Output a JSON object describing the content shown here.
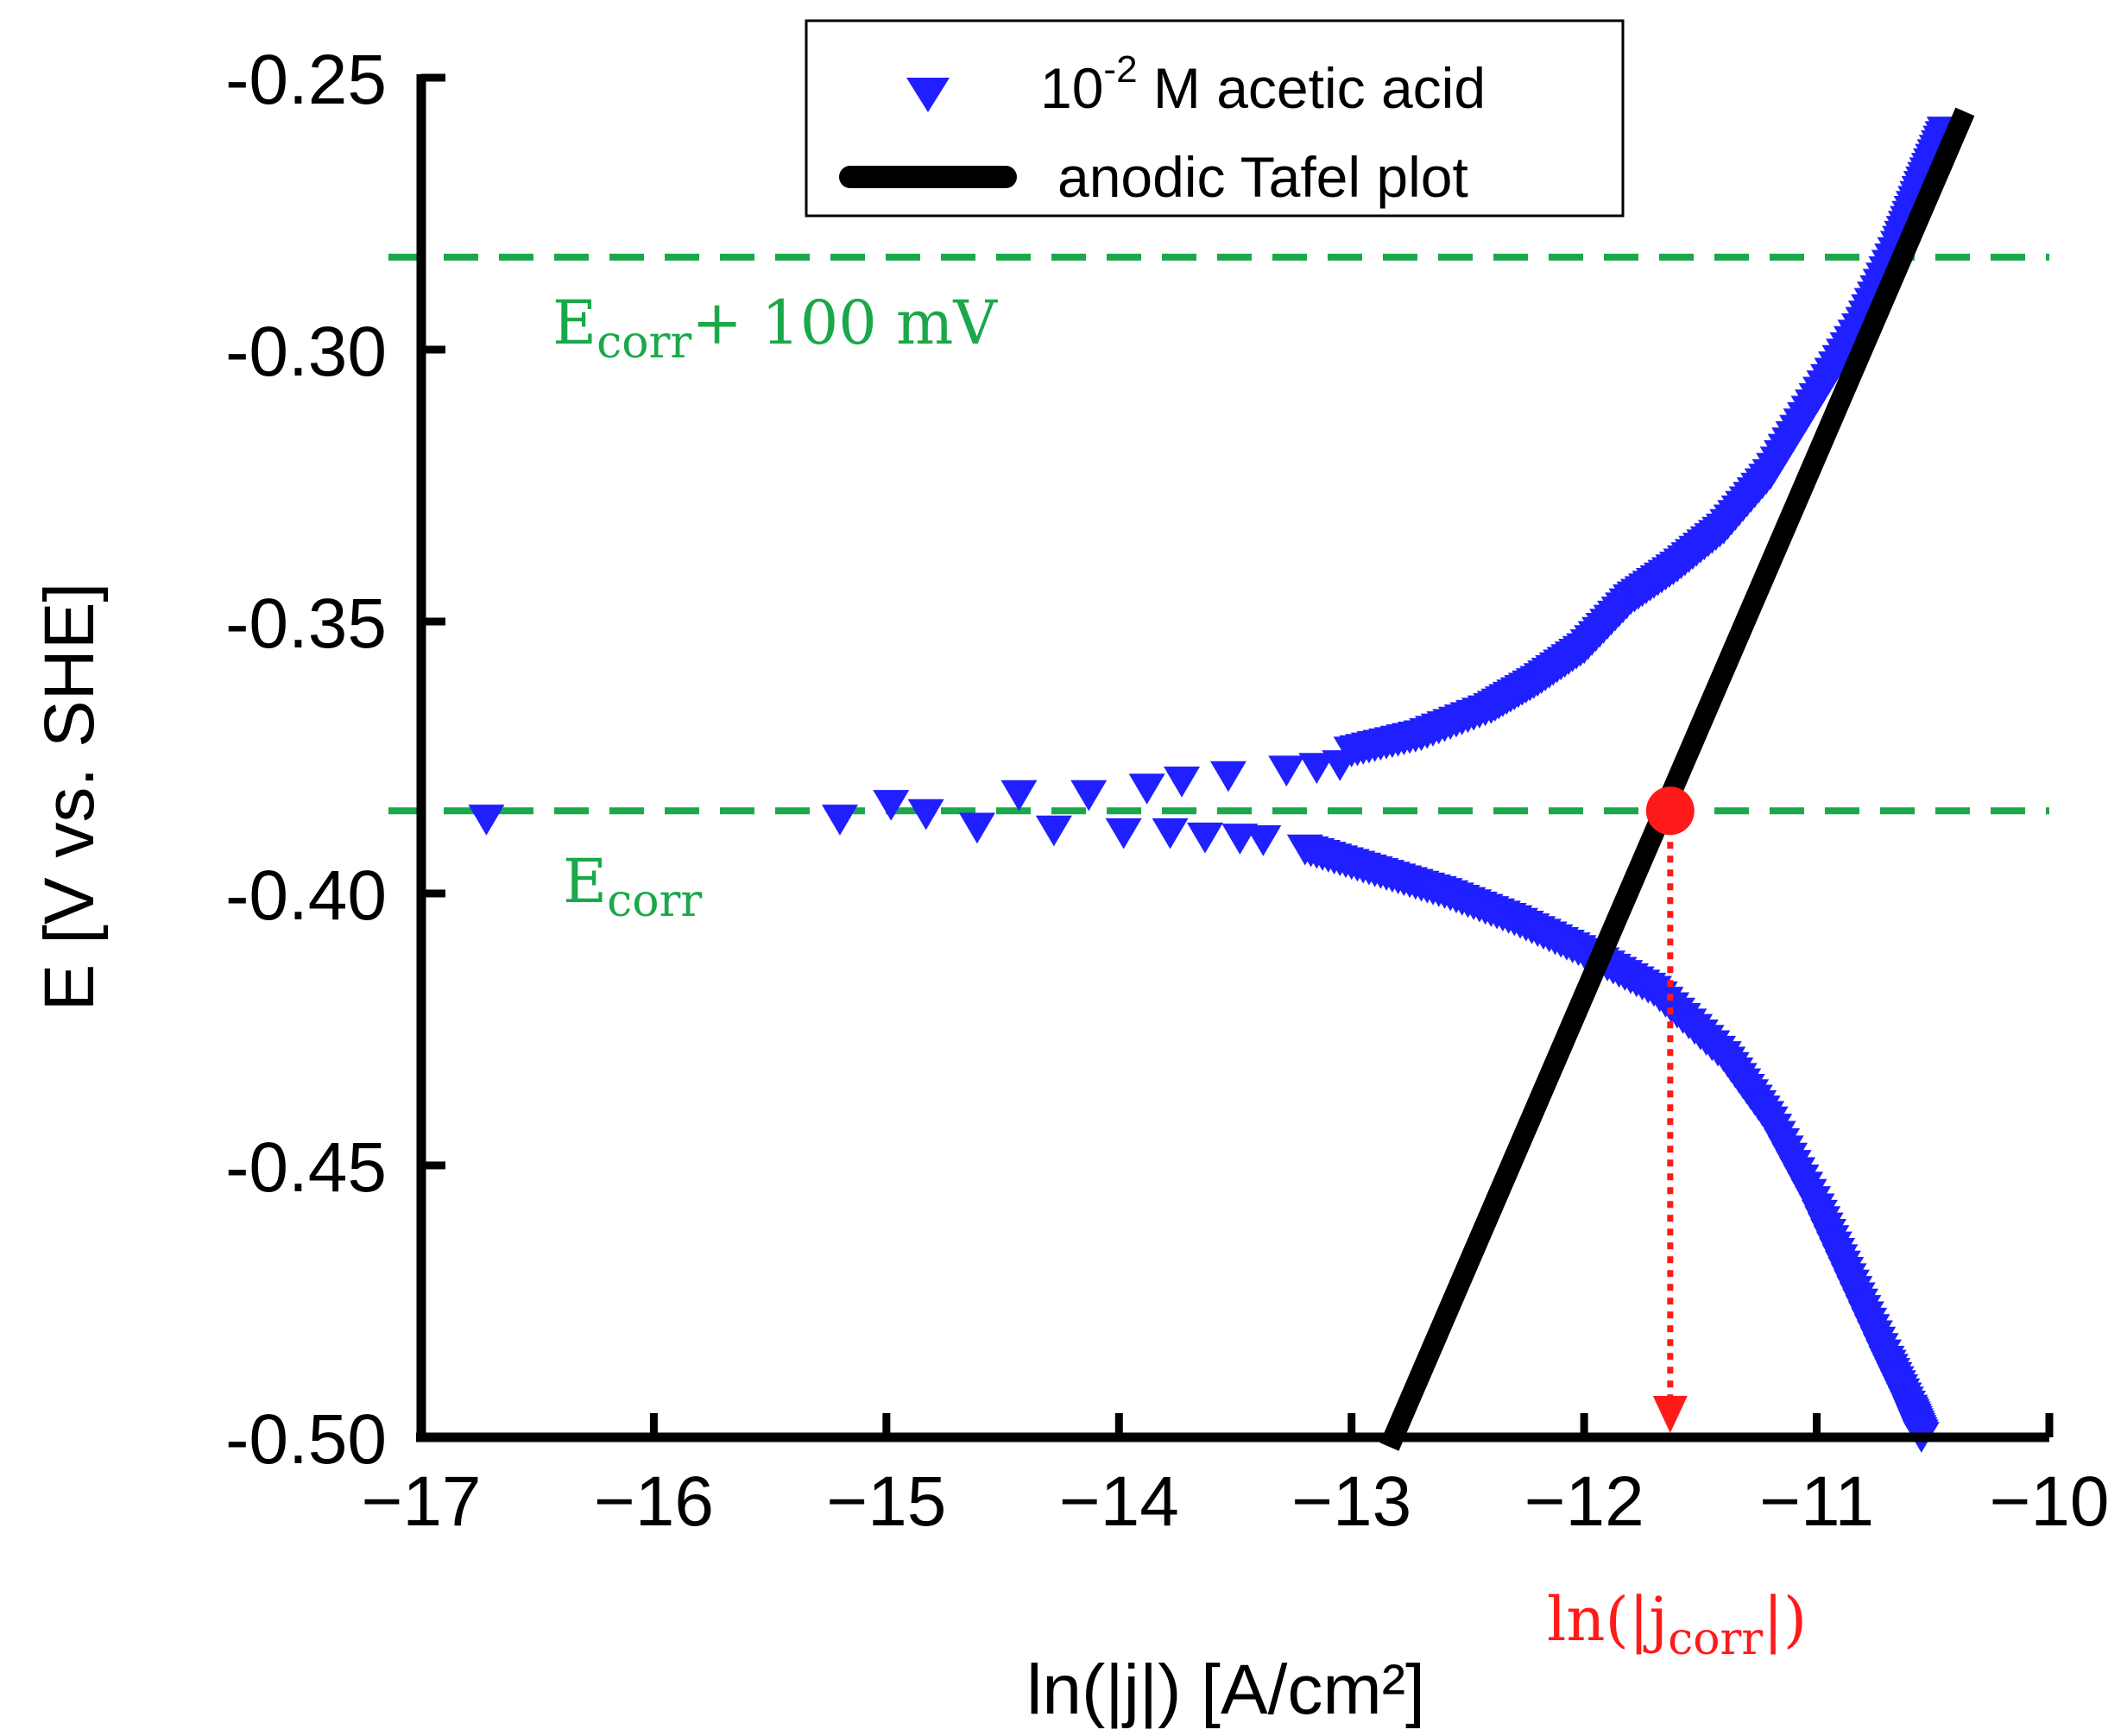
{
  "chart_data": {
    "type": "scatter",
    "title": "",
    "xlabel": "ln(|j|) [A/cm²]",
    "ylabel": "E [V vs. SHE]",
    "xlim": [
      -17,
      -10
    ],
    "ylim": [
      -0.5,
      -0.25
    ],
    "x_ticks": [
      "-17",
      "-16",
      "-15",
      "-14",
      "-13",
      "-12",
      "-11",
      "-10"
    ],
    "y_ticks": [
      "-0.25",
      "-0.30",
      "-0.35",
      "-0.40",
      "-0.45",
      "-0.50"
    ],
    "grid": false,
    "legend_position": "top-right",
    "colors": {
      "series": "#1f1fff",
      "tafel": "#000000",
      "guide": "#1aa84a",
      "marker": "#ff1a1a"
    },
    "series": [
      {
        "name": "acetic_acid",
        "legend_base": "10",
        "legend_exponent": "-2",
        "legend_suffix": " M acetic acid",
        "marker": "triangle-down",
        "points": [
          {
            "x": -16.72,
            "y": -0.3865
          },
          {
            "x": -15.2,
            "y": -0.3865
          },
          {
            "x": -14.98,
            "y": -0.3838
          },
          {
            "x": -14.83,
            "y": -0.3855
          },
          {
            "x": -14.61,
            "y": -0.388
          },
          {
            "x": -14.43,
            "y": -0.382
          },
          {
            "x": -14.28,
            "y": -0.3885
          },
          {
            "x": -14.13,
            "y": -0.382
          },
          {
            "x": -13.98,
            "y": -0.389
          },
          {
            "x": -13.88,
            "y": -0.3808
          },
          {
            "x": -13.73,
            "y": -0.3795
          },
          {
            "x": -13.53,
            "y": -0.3785
          },
          {
            "x": -13.78,
            "y": -0.389
          },
          {
            "x": -13.63,
            "y": -0.3898
          },
          {
            "x": -13.48,
            "y": -0.39
          },
          {
            "x": -13.38,
            "y": -0.3903
          },
          {
            "x": -13.28,
            "y": -0.3775
          },
          {
            "x": -13.15,
            "y": -0.377
          },
          {
            "x": -13.05,
            "y": -0.3765
          }
        ],
        "branches": [
          {
            "name": "anodic",
            "points": [
              {
                "x": -13.0,
                "y": -0.374
              },
              {
                "x": -12.7,
                "y": -0.371
              },
              {
                "x": -12.4,
                "y": -0.366
              },
              {
                "x": -12.2,
                "y": -0.361
              },
              {
                "x": -12.0,
                "y": -0.355
              },
              {
                "x": -11.8,
                "y": -0.346
              },
              {
                "x": -11.6,
                "y": -0.34
              },
              {
                "x": -11.4,
                "y": -0.333
              },
              {
                "x": -11.2,
                "y": -0.323
              },
              {
                "x": -11.0,
                "y": -0.309
              },
              {
                "x": -10.8,
                "y": -0.295
              },
              {
                "x": -10.65,
                "y": -0.281
              },
              {
                "x": -10.55,
                "y": -0.27
              },
              {
                "x": -10.45,
                "y": -0.26
              }
            ]
          },
          {
            "name": "cathodic",
            "points": [
              {
                "x": -13.2,
                "y": -0.392
              },
              {
                "x": -12.9,
                "y": -0.396
              },
              {
                "x": -12.6,
                "y": -0.4
              },
              {
                "x": -12.3,
                "y": -0.405
              },
              {
                "x": -12.0,
                "y": -0.411
              },
              {
                "x": -11.7,
                "y": -0.418
              },
              {
                "x": -11.4,
                "y": -0.43
              },
              {
                "x": -11.2,
                "y": -0.442
              },
              {
                "x": -11.0,
                "y": -0.458
              },
              {
                "x": -10.85,
                "y": -0.472
              },
              {
                "x": -10.7,
                "y": -0.486
              },
              {
                "x": -10.6,
                "y": -0.495
              },
              {
                "x": -10.55,
                "y": -0.5
              }
            ]
          }
        ]
      },
      {
        "name": "anodic_tafel_line",
        "legend_label": "anodic Tafel plot",
        "type": "line",
        "points": [
          {
            "x": -12.82,
            "y": -0.5
          },
          {
            "x": -10.38,
            "y": -0.258
          }
        ]
      }
    ],
    "annotations": {
      "ecorr_value": -0.3848,
      "ecorr_plus_value": -0.283,
      "ecorr_label_main": "E",
      "ecorr_label_sub": "corr",
      "ecorr_plus_suffix": "+ 100 mV",
      "jcorr_x": -11.63,
      "jcorr_label_prefix": "ln(|j",
      "jcorr_label_sub": "corr",
      "jcorr_label_suffix": "|)"
    }
  }
}
